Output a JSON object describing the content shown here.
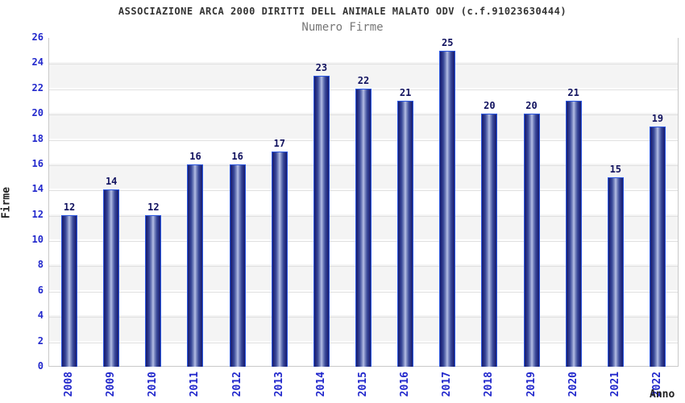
{
  "chart_data": {
    "type": "bar",
    "title": "ASSOCIAZIONE ARCA 2000 DIRITTI DELL ANIMALE MALATO ODV (c.f.91023630444)",
    "subtitle": "Numero Firme",
    "xlabel": "Anno",
    "ylabel": "Firme",
    "categories": [
      "2008",
      "2009",
      "2010",
      "2011",
      "2012",
      "2013",
      "2014",
      "2015",
      "2016",
      "2017",
      "2018",
      "2019",
      "2020",
      "2021",
      "2022"
    ],
    "values": [
      12,
      14,
      12,
      16,
      16,
      17,
      23,
      22,
      21,
      25,
      20,
      20,
      21,
      15,
      19
    ],
    "ylim": [
      0,
      26
    ],
    "ytick_step": 2,
    "legend": "none",
    "grid": "horizontal gridlines with alternating shaded bands every 2 units",
    "colors": {
      "tick_label": "#2228cc",
      "value_label": "#11125f",
      "bar_border": "#2b57e2",
      "bar_dark": "#181f6e",
      "bar_light": "#b7c1e6",
      "band_gray": "#f4f4f4",
      "gridline": "#e0e0e0",
      "plot_border": "#c9c9c9",
      "title": "#333333",
      "subtitle": "#777777",
      "axis_title": "#222222"
    }
  }
}
